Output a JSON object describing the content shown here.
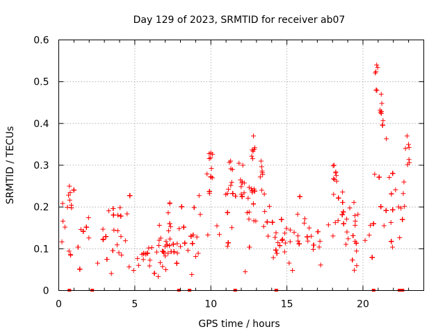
{
  "chart_data": {
    "type": "scatter",
    "title": "Day 129 of 2023, SRMTID for receiver ab07",
    "xlabel": "GPS time / hours",
    "ylabel": "SRMTID / TECUs",
    "xlim": [
      0,
      24
    ],
    "ylim": [
      0,
      0.6
    ],
    "x_ticks": [
      0,
      5,
      10,
      15,
      20
    ],
    "x_tick_labels": [
      "0",
      "5",
      "10",
      "15",
      "20"
    ],
    "y_ticks": [
      0,
      0.1,
      0.2,
      0.3,
      0.4,
      0.5,
      0.6
    ],
    "y_tick_labels": [
      "0",
      "0.1",
      "0.2",
      "0.3",
      "0.4",
      "0.5",
      "0.6"
    ],
    "grid": true,
    "marker": "plus",
    "color": "#ff0000",
    "baseline_markers_x": [
      0.7,
      2.2,
      7.9,
      8.6,
      11.6,
      14.3,
      20.7,
      22.4,
      22.6
    ],
    "trend": [
      [
        0.0,
        0.11
      ],
      [
        0.5,
        0.12
      ],
      [
        1.0,
        0.11
      ],
      [
        1.5,
        0.12
      ],
      [
        2.0,
        0.11
      ],
      [
        2.5,
        0.11
      ],
      [
        3.0,
        0.11
      ],
      [
        3.5,
        0.12
      ],
      [
        4.0,
        0.13
      ],
      [
        4.5,
        0.12
      ],
      [
        5.0,
        0.11
      ],
      [
        5.5,
        0.1
      ],
      [
        6.0,
        0.09
      ],
      [
        6.5,
        0.08
      ],
      [
        7.0,
        0.08
      ],
      [
        7.5,
        0.09
      ],
      [
        8.0,
        0.11
      ],
      [
        8.5,
        0.13
      ],
      [
        9.0,
        0.15
      ],
      [
        9.5,
        0.17
      ],
      [
        10.0,
        0.19
      ],
      [
        10.5,
        0.18
      ],
      [
        11.0,
        0.17
      ],
      [
        11.5,
        0.18
      ],
      [
        12.0,
        0.19
      ],
      [
        12.5,
        0.18
      ],
      [
        13.0,
        0.17
      ],
      [
        13.5,
        0.15
      ],
      [
        14.0,
        0.13
      ],
      [
        14.5,
        0.12
      ],
      [
        15.0,
        0.11
      ],
      [
        15.5,
        0.12
      ],
      [
        16.0,
        0.13
      ],
      [
        16.5,
        0.11
      ],
      [
        17.0,
        0.1
      ],
      [
        17.5,
        0.14
      ],
      [
        18.0,
        0.17
      ],
      [
        18.5,
        0.15
      ],
      [
        19.0,
        0.14
      ],
      [
        19.5,
        0.13
      ],
      [
        20.0,
        0.12
      ],
      [
        20.5,
        0.11
      ],
      [
        20.8,
        0.16
      ],
      [
        21.0,
        0.28
      ],
      [
        21.3,
        0.22
      ],
      [
        21.6,
        0.2
      ],
      [
        22.0,
        0.19
      ],
      [
        22.4,
        0.17
      ],
      [
        22.8,
        0.21
      ]
    ],
    "peaks": [
      {
        "x": 10.0,
        "y": 0.33
      },
      {
        "x": 11.3,
        "y": 0.31
      },
      {
        "x": 12.1,
        "y": 0.3
      },
      {
        "x": 12.8,
        "y": 0.37
      },
      {
        "x": 13.3,
        "y": 0.31
      },
      {
        "x": 18.1,
        "y": 0.3
      },
      {
        "x": 20.9,
        "y": 0.54
      },
      {
        "x": 21.2,
        "y": 0.47
      },
      {
        "x": 22.9,
        "y": 0.37
      },
      {
        "x": 0.7,
        "y": 0.25
      },
      {
        "x": 7.3,
        "y": 0.21
      }
    ],
    "num_points": 2600
  }
}
